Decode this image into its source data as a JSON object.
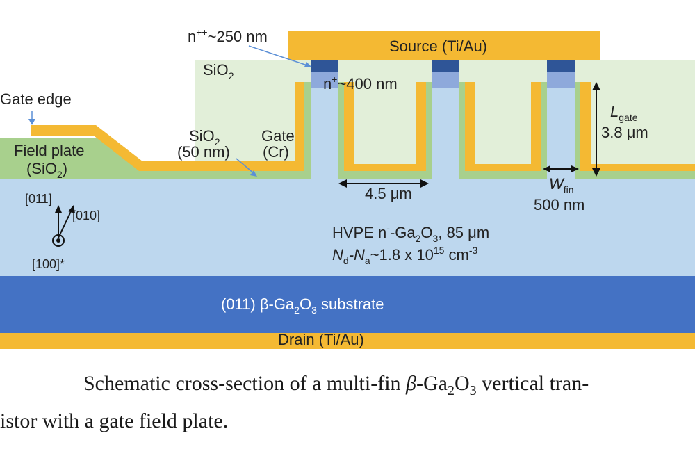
{
  "labels": {
    "source": "Source (Ti/Au)",
    "drain": "Drain (Ti/Au)",
    "substrate_pre": "(011) β-Ga",
    "substrate_sub1": "2",
    "substrate_mid": "O",
    "substrate_sub2": "3",
    "substrate_post": " substrate",
    "npp_sup_prefix": "n",
    "npp_sup": "++",
    "npp_rest": "~250 nm",
    "np_prefix": "n",
    "np_sup": "+",
    "np_rest": "~400 nm",
    "sio2_top_main": "SiO",
    "sio2_top_sub": "2",
    "gate_edge": "Gate edge",
    "field_plate_line1": "Field plate",
    "field_plate_line2_a": "(SiO",
    "field_plate_line2_sub": "2",
    "field_plate_line2_b": ")",
    "sio2_thin_main": "SiO",
    "sio2_thin_sub": "2",
    "sio2_thin_line2": "(50 nm)",
    "gate_line1": "Gate",
    "gate_line2": "(Cr)",
    "lgate_main": "L",
    "lgate_sub": "gate",
    "lgate_value": "3.8 μm",
    "pitch": "4.5 μm",
    "wfin_main": "W",
    "wfin_sub": "fin",
    "wfin_value": "500 nm",
    "dir_011": "[011]",
    "dir_010": "[010]",
    "dir_100": "[100]*",
    "hvpe_a": "HVPE n",
    "hvpe_sup": "-",
    "hvpe_b": "-Ga",
    "hvpe_sub1": "2",
    "hvpe_c": "O",
    "hvpe_sub2": "3",
    "hvpe_d": ", 85 μm",
    "nd_main": "N",
    "nd_sub": "d",
    "nd_dash": "-N",
    "na_sub": "a",
    "nd_value": "~1.8 x 10",
    "nd_exp": "15",
    "nd_unit": " cm",
    "nd_unit_exp": "-3"
  },
  "caption": {
    "line1_a": "Schematic cross-section of a multi-fin ",
    "line1_beta": "β",
    "line1_b": "-Ga",
    "line1_sub1": "2",
    "line1_c": "O",
    "line1_sub2": "3",
    "line1_d": " vertical tran-",
    "line2": "istor with a gate field plate."
  },
  "colors": {
    "metal": "#F4B933",
    "oxide": "#A8D08D",
    "oxide_light": "#E2EFD9",
    "drift": "#BDD7EE",
    "substrate": "#4472C4",
    "npp": "#2F5597",
    "np": "#8EA9DB"
  }
}
